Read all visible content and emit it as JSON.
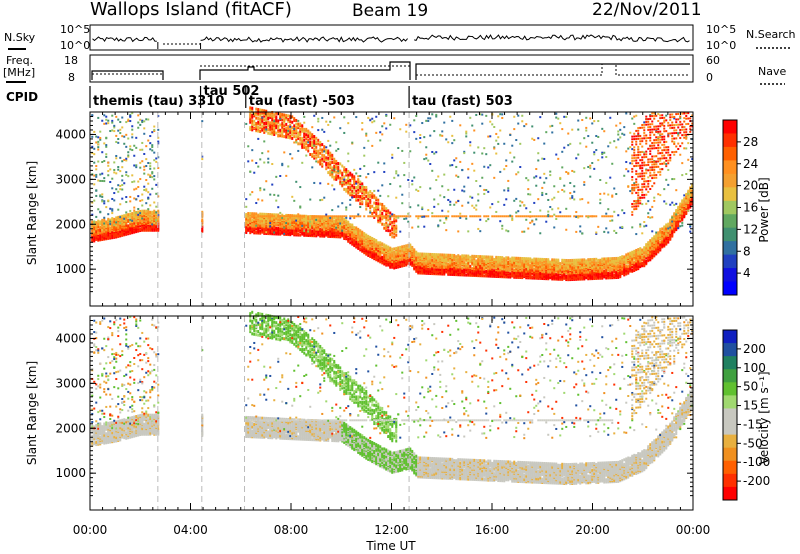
{
  "header": {
    "station": "Wallops Island (fitACF)",
    "beam": "Beam 19",
    "date": "22/Nov/2011"
  },
  "strip_labels": {
    "nsky": "N.Sky",
    "nsearch": "N.Search",
    "freq": "Freq.",
    "freq_unit": "[MHz]",
    "nave": "Nave",
    "cpid": "CPID"
  },
  "strip_ticks": {
    "nsky_top": "10^5",
    "nsky_bottom": "10^0",
    "freq_top": "18",
    "freq_bottom": "8",
    "nave_top": "60",
    "nave_bottom": "0"
  },
  "cpid_segments": [
    {
      "label": "themis (tau) 3310",
      "start_hour": 0.0,
      "end_hour": 2.7
    },
    {
      "label": "tau 502",
      "start_hour": 4.4,
      "end_hour": 6.2
    },
    {
      "label": "tau (fast) -503",
      "start_hour": 6.2,
      "end_hour": 12.7
    },
    {
      "label": "tau (fast) 503",
      "start_hour": 12.7,
      "end_hour": 24.0
    }
  ],
  "colorbars": {
    "power": {
      "label": "Power [dB]",
      "ticks": [
        "28",
        "24",
        "20",
        "16",
        "12",
        "8",
        "4"
      ],
      "colors": [
        "#ff0000",
        "#ff3000",
        "#ff6000",
        "#ff9020",
        "#f4a030",
        "#e8c040",
        "#a0c860",
        "#60a860",
        "#409070",
        "#3070a0",
        "#2040c0",
        "#1010e0",
        "#0000ff"
      ]
    },
    "velocity": {
      "label": "Velocity [m s⁻¹]",
      "ticks": [
        "200",
        "100",
        "50",
        "15",
        "-15",
        "-50",
        "-100",
        "-200"
      ],
      "colors": [
        "#1020c0",
        "#2050a0",
        "#208060",
        "#40a040",
        "#60c030",
        "#a0d870",
        "#c8c8c0",
        "#c8c8c0",
        "#e8b040",
        "#f09020",
        "#ff6000",
        "#ff3000",
        "#ff0000"
      ]
    }
  },
  "chart_data": [
    {
      "type": "heatmap",
      "title": "Power",
      "ylabel": "Slant Range [km]",
      "xlabel": "Time UT",
      "x_ticks": [
        "00:00",
        "04:00",
        "08:00",
        "12:00",
        "16:00",
        "20:00",
        "00:00"
      ],
      "y_ticks": [
        "1000",
        "2000",
        "3000",
        "4000"
      ],
      "xlim_hours": [
        0,
        24
      ],
      "ylim_km": [
        180,
        4500
      ],
      "data_gaps_hours": [
        [
          2.7,
          4.4
        ],
        [
          4.5,
          6.1
        ]
      ],
      "features": [
        {
          "name": "main_band",
          "points": [
            [
              0.0,
              1800
            ],
            [
              1,
              1900
            ],
            [
              2,
              2050
            ],
            [
              2.7,
              2050
            ],
            [
              6.2,
              2000
            ],
            [
              8,
              1950
            ],
            [
              10,
              1900
            ],
            [
              11,
              1500
            ],
            [
              12,
              1200
            ],
            [
              12.7,
              1300
            ],
            [
              13,
              1100
            ],
            [
              15,
              1050
            ],
            [
              17,
              1000
            ],
            [
              19,
              950
            ],
            [
              21,
              1000
            ],
            [
              22,
              1250
            ],
            [
              23,
              1800
            ],
            [
              24,
              2700
            ]
          ]
        },
        {
          "name": "sloping_echo",
          "points": [
            [
              6.3,
              4400
            ],
            [
              8,
              4200
            ],
            [
              9,
              3700
            ],
            [
              10,
              3100
            ],
            [
              11,
              2600
            ],
            [
              12,
              2000
            ]
          ]
        }
      ]
    },
    {
      "type": "heatmap",
      "title": "Velocity",
      "ylabel": "Slant Range [km]",
      "xlabel": "Time UT",
      "x_ticks": [
        "00:00",
        "04:00",
        "08:00",
        "12:00",
        "16:00",
        "20:00",
        "00:00"
      ],
      "y_ticks": [
        "1000",
        "2000",
        "3000",
        "4000"
      ],
      "xlim_hours": [
        0,
        24
      ],
      "ylim_km": [
        180,
        4500
      ]
    }
  ],
  "footer": {
    "x_axis_label": "Time UT"
  }
}
